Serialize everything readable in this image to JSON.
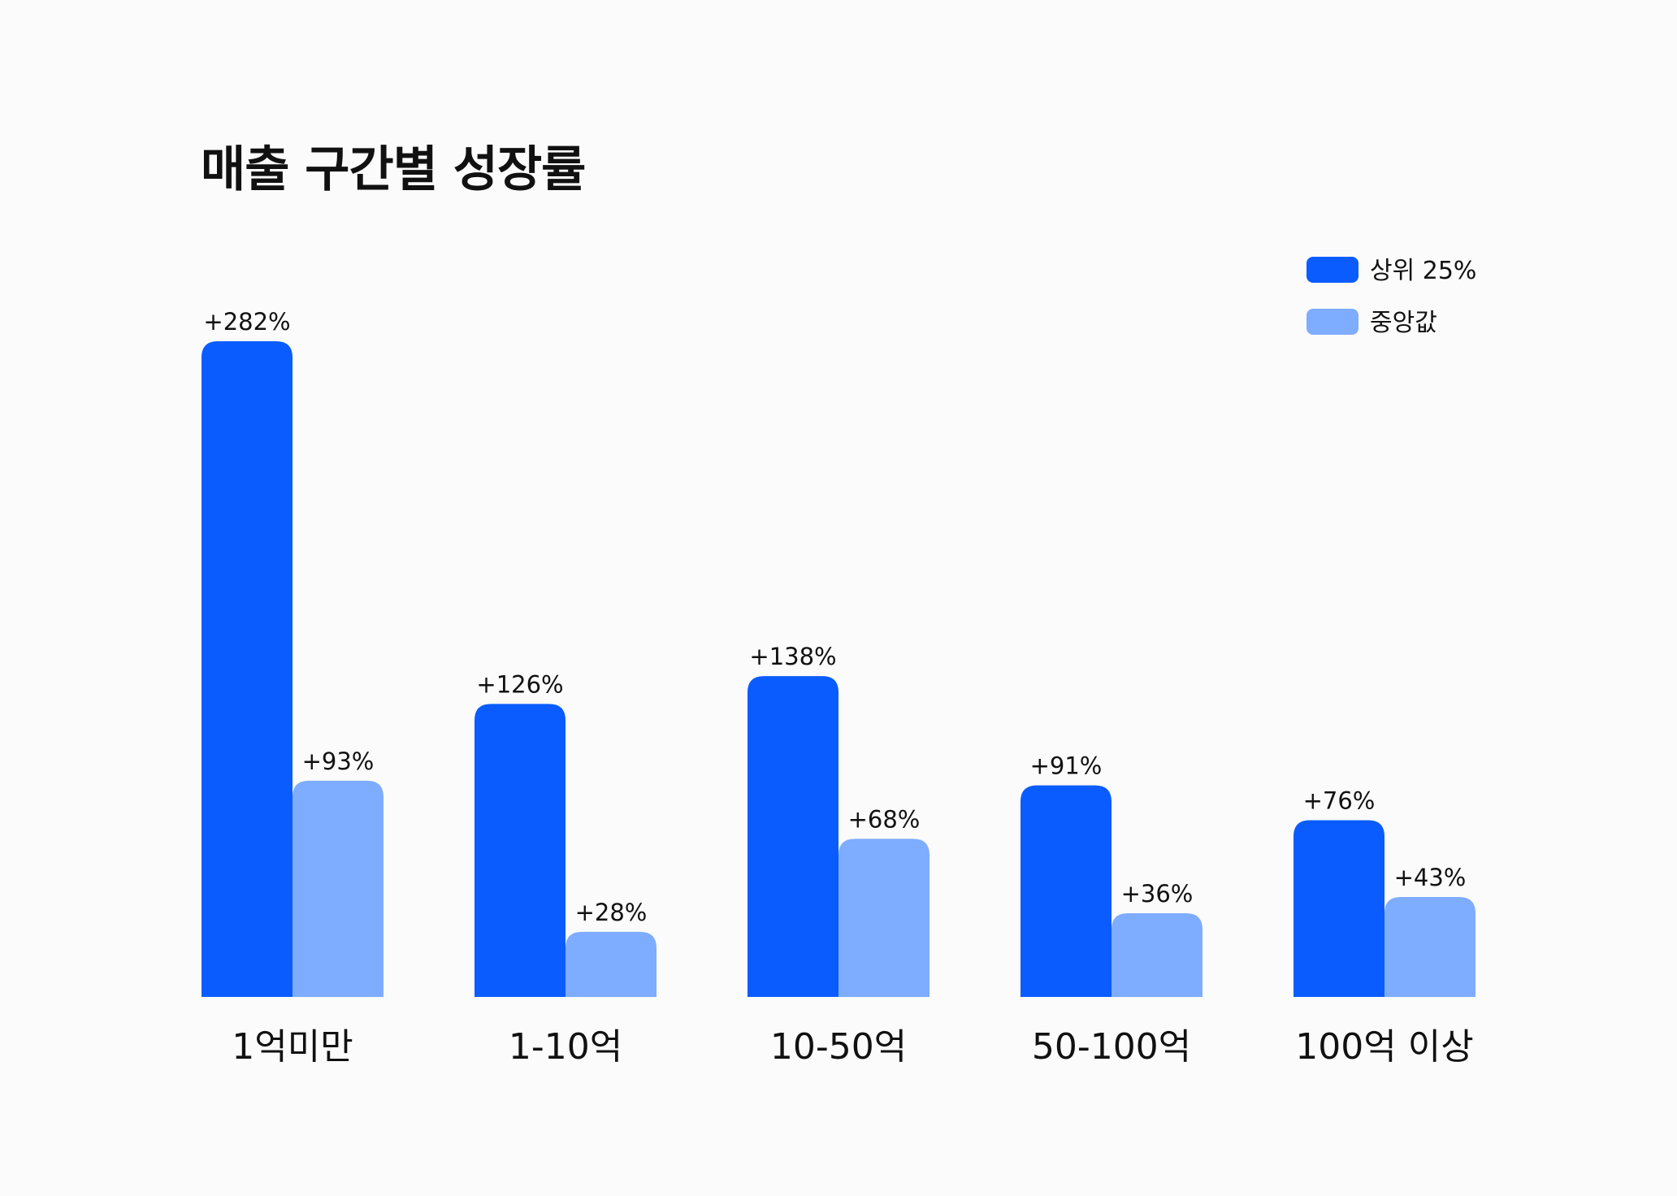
{
  "chart_data": {
    "type": "bar",
    "title": "매출 구간별 성장률",
    "categories": [
      "1억미만",
      "1-10억",
      "10-50억",
      "50-100억",
      "100억 이상"
    ],
    "series": [
      {
        "name": "상위 25%",
        "color": "#0A5CFF",
        "values": [
          282,
          126,
          138,
          91,
          76
        ],
        "labels": [
          "+282%",
          "+126%",
          "+138%",
          "+91%",
          "+76%"
        ]
      },
      {
        "name": "중앙값",
        "color": "#7EACFF",
        "values": [
          93,
          28,
          68,
          36,
          43
        ],
        "labels": [
          "+93%",
          "+28%",
          "+68%",
          "+36%",
          "+43%"
        ]
      }
    ],
    "xlabel": "",
    "ylabel": "",
    "ylim": [
      0,
      282
    ],
    "grid": false,
    "legend_position": "top-right"
  }
}
